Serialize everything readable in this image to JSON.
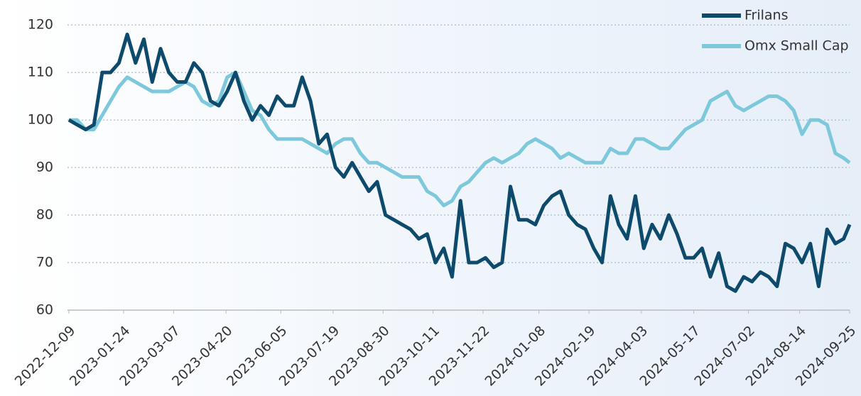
{
  "chart_data": {
    "type": "line",
    "x": [
      "2022-12-09",
      "2022-12-16",
      "2022-12-23",
      "2022-12-30",
      "2023-01-06",
      "2023-01-13",
      "2023-01-20",
      "2023-01-27",
      "2023-02-03",
      "2023-02-10",
      "2023-02-17",
      "2023-02-24",
      "2023-03-03",
      "2023-03-10",
      "2023-03-17",
      "2023-03-24",
      "2023-03-31",
      "2023-04-07",
      "2023-04-14",
      "2023-04-21",
      "2023-04-28",
      "2023-05-05",
      "2023-05-12",
      "2023-05-19",
      "2023-05-26",
      "2023-06-02",
      "2023-06-09",
      "2023-06-16",
      "2023-06-23",
      "2023-06-30",
      "2023-07-07",
      "2023-07-14",
      "2023-07-21",
      "2023-07-28",
      "2023-08-04",
      "2023-08-11",
      "2023-08-18",
      "2023-08-25",
      "2023-09-01",
      "2023-09-08",
      "2023-09-15",
      "2023-09-22",
      "2023-09-29",
      "2023-10-06",
      "2023-10-13",
      "2023-10-20",
      "2023-10-27",
      "2023-11-03",
      "2023-11-10",
      "2023-11-17",
      "2023-11-24",
      "2023-12-01",
      "2023-12-08",
      "2023-12-15",
      "2023-12-22",
      "2023-12-29",
      "2024-01-05",
      "2024-01-12",
      "2024-01-19",
      "2024-01-26",
      "2024-02-02",
      "2024-02-09",
      "2024-02-16",
      "2024-02-23",
      "2024-03-01",
      "2024-03-08",
      "2024-03-15",
      "2024-03-22",
      "2024-03-29",
      "2024-04-05",
      "2024-04-12",
      "2024-04-19",
      "2024-04-26",
      "2024-05-03",
      "2024-05-10",
      "2024-05-17",
      "2024-05-24",
      "2024-05-31",
      "2024-06-07",
      "2024-06-14",
      "2024-06-21",
      "2024-06-28",
      "2024-07-05",
      "2024-07-12",
      "2024-07-19",
      "2024-07-26",
      "2024-08-02",
      "2024-08-09",
      "2024-08-16",
      "2024-08-23",
      "2024-08-30",
      "2024-09-06",
      "2024-09-13",
      "2024-09-20",
      "2024-09-25"
    ],
    "series": [
      {
        "name": "Frilans",
        "color": "#0d4a6b",
        "values": [
          100,
          99,
          98,
          99,
          110,
          110,
          112,
          118,
          112,
          117,
          108,
          115,
          110,
          108,
          108,
          112,
          110,
          104,
          103,
          106,
          110,
          104,
          100,
          103,
          101,
          105,
          103,
          103,
          109,
          104,
          95,
          97,
          90,
          88,
          91,
          88,
          85,
          87,
          80,
          79,
          78,
          77,
          75,
          76,
          70,
          73,
          67,
          83,
          70,
          70,
          71,
          69,
          70,
          86,
          79,
          79,
          78,
          82,
          84,
          85,
          80,
          78,
          77,
          73,
          70,
          84,
          78,
          75,
          84,
          73,
          78,
          75,
          80,
          76,
          71,
          71,
          73,
          67,
          72,
          65,
          64,
          67,
          66,
          68,
          67,
          65,
          74,
          73,
          70,
          74,
          65,
          77,
          74,
          75,
          78
        ]
      },
      {
        "name": "Omx Small Cap",
        "color": "#7ec8dc",
        "values": [
          100,
          100,
          98,
          98,
          101,
          104,
          107,
          109,
          108,
          107,
          106,
          106,
          106,
          107,
          108,
          107,
          104,
          103,
          104,
          109,
          110,
          106,
          102,
          101,
          98,
          96,
          96,
          96,
          96,
          95,
          94,
          93,
          95,
          96,
          96,
          93,
          91,
          91,
          90,
          89,
          88,
          88,
          88,
          85,
          84,
          82,
          83,
          86,
          87,
          89,
          91,
          92,
          91,
          92,
          93,
          95,
          96,
          95,
          94,
          92,
          93,
          92,
          91,
          91,
          91,
          94,
          93,
          93,
          96,
          96,
          95,
          94,
          94,
          96,
          98,
          99,
          100,
          104,
          105,
          106,
          103,
          102,
          103,
          104,
          105,
          105,
          104,
          102,
          97,
          100,
          100,
          99,
          93,
          92,
          91
        ]
      }
    ],
    "xlim": [
      "2022-12-09",
      "2024-09-25"
    ],
    "xticks": [
      "2022-12-09",
      "2023-01-24",
      "2023-03-07",
      "2023-04-20",
      "2023-06-05",
      "2023-07-19",
      "2023-08-30",
      "2023-10-11",
      "2023-11-22",
      "2024-01-08",
      "2024-02-19",
      "2024-04-03",
      "2024-05-17",
      "2024-07-02",
      "2024-08-14",
      "2024-09-25"
    ],
    "ylim": [
      60,
      123
    ],
    "yticks": [
      60,
      70,
      80,
      90,
      100,
      110,
      120
    ],
    "grid": true,
    "legend": "top-right"
  }
}
